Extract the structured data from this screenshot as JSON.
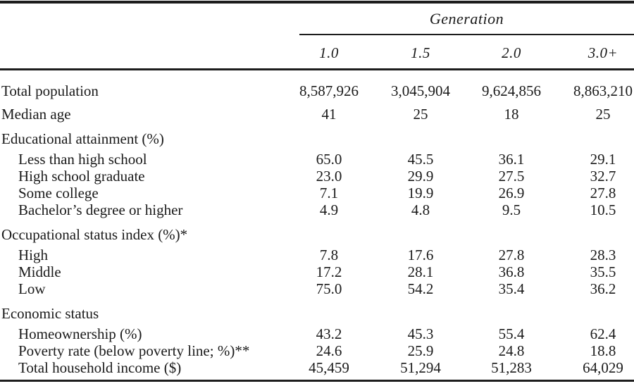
{
  "table": {
    "spanner_label": "Generation",
    "columns": [
      "1.0",
      "1.5",
      "2.0",
      "3.0+"
    ],
    "rows": [
      {
        "label": "Total population",
        "level": "top",
        "values": [
          "8,587,926",
          "3,045,904",
          "9,624,856",
          "8,863,210"
        ]
      },
      {
        "label": "Median age",
        "level": "top",
        "values": [
          "41",
          "25",
          "18",
          "25"
        ]
      },
      {
        "label": "Educational attainment (%)",
        "level": "group",
        "values": [
          "",
          "",
          "",
          ""
        ]
      },
      {
        "label": "Less than high school",
        "level": "sub-first",
        "values": [
          "65.0",
          "45.5",
          "36.1",
          "29.1"
        ]
      },
      {
        "label": "High school graduate",
        "level": "sub",
        "values": [
          "23.0",
          "29.9",
          "27.5",
          "32.7"
        ]
      },
      {
        "label": "Some college",
        "level": "sub",
        "values": [
          "7.1",
          "19.9",
          "26.9",
          "27.8"
        ]
      },
      {
        "label": "Bachelor’s degree or higher",
        "level": "sub",
        "values": [
          "4.9",
          "4.8",
          "9.5",
          "10.5"
        ]
      },
      {
        "label": "Occupational status index (%)*",
        "level": "group",
        "values": [
          "",
          "",
          "",
          ""
        ]
      },
      {
        "label": "High",
        "level": "sub-first",
        "values": [
          "7.8",
          "17.6",
          "27.8",
          "28.3"
        ]
      },
      {
        "label": "Middle",
        "level": "sub",
        "values": [
          "17.2",
          "28.1",
          "36.8",
          "35.5"
        ]
      },
      {
        "label": "Low",
        "level": "sub",
        "values": [
          "75.0",
          "54.2",
          "35.4",
          "36.2"
        ]
      },
      {
        "label": "Economic status",
        "level": "group",
        "values": [
          "",
          "",
          "",
          ""
        ]
      },
      {
        "label": "Homeownership (%)",
        "level": "sub-first",
        "values": [
          "43.2",
          "45.3",
          "55.4",
          "62.4"
        ]
      },
      {
        "label": "Poverty rate (below poverty line; %)**",
        "level": "sub",
        "values": [
          "24.6",
          "25.9",
          "24.8",
          "18.8"
        ]
      },
      {
        "label": "Total household income ($)",
        "level": "sub",
        "values": [
          "45,459",
          "51,294",
          "51,283",
          "64,029"
        ]
      }
    ],
    "colors": {
      "text": "#1a1a1a",
      "rule": "#1d1d1d",
      "background": "#ffffff"
    }
  }
}
